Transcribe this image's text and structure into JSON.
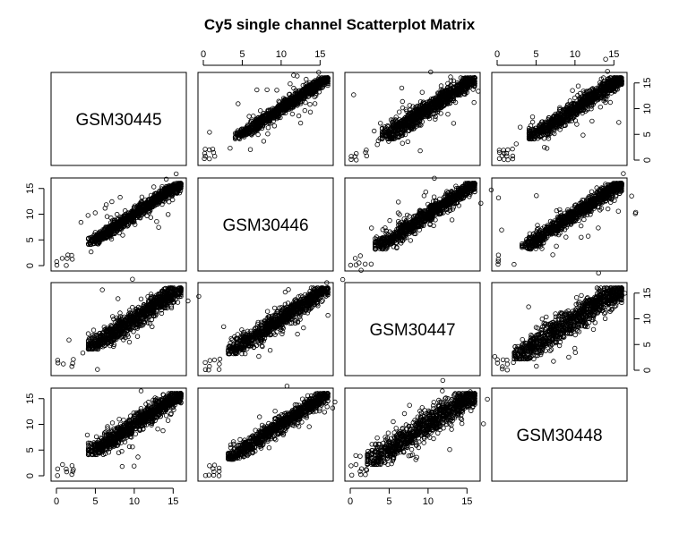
{
  "title": "Cy5 single channel Scatterplot Matrix",
  "colors": {
    "background": "#ffffff",
    "ink": "#000000"
  },
  "chart_data": {
    "type": "scatter",
    "layout": "scatterplot-matrix",
    "variables": [
      "GSM30445",
      "GSM30446",
      "GSM30447",
      "GSM30448"
    ],
    "axis_range": [
      0,
      16
    ],
    "ticks": [
      0,
      5,
      10,
      15
    ],
    "tick_labels": [
      "0",
      "5",
      "10",
      "15"
    ],
    "point_style": "open-circle",
    "grid": false,
    "axis_placement": {
      "top": [
        "GSM30446",
        "GSM30448"
      ],
      "right": [
        "GSM30445",
        "GSM30447"
      ],
      "bottom": [
        "GSM30445",
        "GSM30447"
      ],
      "left": [
        "GSM30446",
        "GSM30448"
      ]
    },
    "panels": [
      {
        "row": "GSM30445",
        "col": "GSM30446",
        "pattern": "linear",
        "spread": 0.75,
        "floor": 4.4
      },
      {
        "row": "GSM30445",
        "col": "GSM30447",
        "pattern": "linear",
        "spread": 1.1,
        "floor": 4.4
      },
      {
        "row": "GSM30445",
        "col": "GSM30448",
        "pattern": "linear",
        "spread": 1.0,
        "floor": 4.4
      },
      {
        "row": "GSM30446",
        "col": "GSM30445",
        "pattern": "linear",
        "spread": 0.75,
        "floor": 4.4
      },
      {
        "row": "GSM30446",
        "col": "GSM30447",
        "pattern": "linear",
        "spread": 1.0,
        "floor": 3.5
      },
      {
        "row": "GSM30446",
        "col": "GSM30448",
        "pattern": "linear",
        "spread": 0.9,
        "floor": 3.5
      },
      {
        "row": "GSM30447",
        "col": "GSM30445",
        "pattern": "linear",
        "spread": 1.1,
        "floor": 4.4
      },
      {
        "row": "GSM30447",
        "col": "GSM30446",
        "pattern": "linear",
        "spread": 1.0,
        "floor": 3.5
      },
      {
        "row": "GSM30447",
        "col": "GSM30448",
        "pattern": "linear",
        "spread": 1.5,
        "floor": 2.5
      },
      {
        "row": "GSM30448",
        "col": "GSM30445",
        "pattern": "linear",
        "spread": 1.0,
        "floor": 4.4
      },
      {
        "row": "GSM30448",
        "col": "GSM30446",
        "pattern": "linear",
        "spread": 0.9,
        "floor": 3.5
      },
      {
        "row": "GSM30448",
        "col": "GSM30447",
        "pattern": "linear",
        "spread": 1.5,
        "floor": 2.5
      }
    ]
  }
}
